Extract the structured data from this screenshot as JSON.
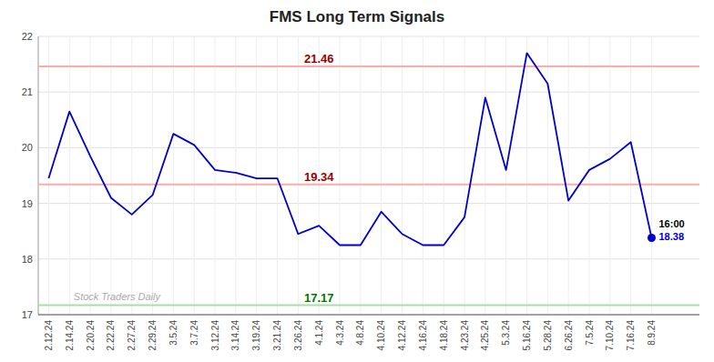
{
  "chart_data": {
    "type": "line",
    "title": "FMS Long Term Signals",
    "categories": [
      "2.12.24",
      "2.14.24",
      "2.20.24",
      "2.22.24",
      "2.27.24",
      "2.29.24",
      "3.5.24",
      "3.7.24",
      "3.12.24",
      "3.14.24",
      "3.19.24",
      "3.21.24",
      "3.26.24",
      "4.1.24",
      "4.3.24",
      "4.8.24",
      "4.10.24",
      "4.12.24",
      "4.16.24",
      "4.18.24",
      "4.23.24",
      "4.25.24",
      "5.3.24",
      "5.16.24",
      "5.28.24",
      "6.26.24",
      "7.5.24",
      "7.10.24",
      "7.16.24",
      "8.9.24"
    ],
    "values": [
      19.45,
      20.65,
      19.85,
      19.1,
      18.8,
      19.15,
      20.25,
      20.05,
      19.6,
      19.55,
      19.45,
      19.45,
      18.45,
      18.6,
      18.25,
      18.25,
      18.85,
      18.45,
      18.25,
      18.25,
      18.75,
      20.9,
      19.6,
      21.7,
      21.15,
      19.05,
      19.6,
      19.8,
      20.1,
      18.38
    ],
    "color": "#0000cc",
    "ylim": [
      17,
      22
    ],
    "yticks": [
      17,
      18,
      19,
      20,
      21,
      22
    ],
    "grid": true,
    "hlines": [
      {
        "value": 21.46,
        "label": "21.46",
        "color": "#ffaaaa",
        "label_color": "#990000"
      },
      {
        "value": 19.34,
        "label": "19.34",
        "color": "#ffaaaa",
        "label_color": "#990000"
      },
      {
        "value": 17.17,
        "label": "17.17",
        "color": "#aaddaa",
        "label_color": "#007700"
      }
    ],
    "annotations": [
      {
        "text": "16:00"
      },
      {
        "text": "18.38"
      }
    ],
    "watermark": "Stock Traders Daily"
  }
}
